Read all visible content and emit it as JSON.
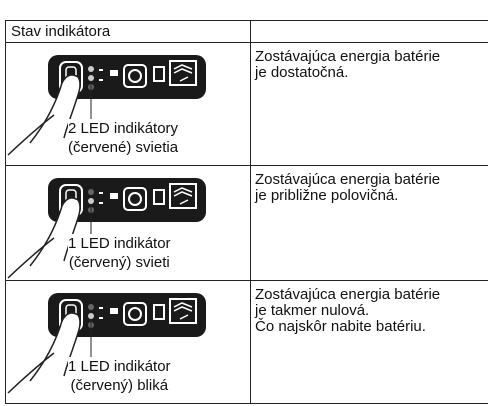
{
  "header": {
    "title": "Stav indikátora"
  },
  "rows": [
    {
      "label": [
        "2 LED indikátory",
        "(červené) svietia"
      ],
      "description": [
        "Zostávajúca energia batérie",
        "je dostatočná."
      ]
    },
    {
      "label": [
        "1 LED indikátor",
        "(červený) svieti"
      ],
      "description": [
        "Zostávajúca energia batérie",
        "je približne polovičná."
      ]
    },
    {
      "label": [
        "1 LED indikátor",
        "(červený) bliká"
      ],
      "description": [
        "Zostávajúca energia batérie",
        "je takmer nulová.",
        "Čo najskôr nabite batériu."
      ]
    }
  ]
}
